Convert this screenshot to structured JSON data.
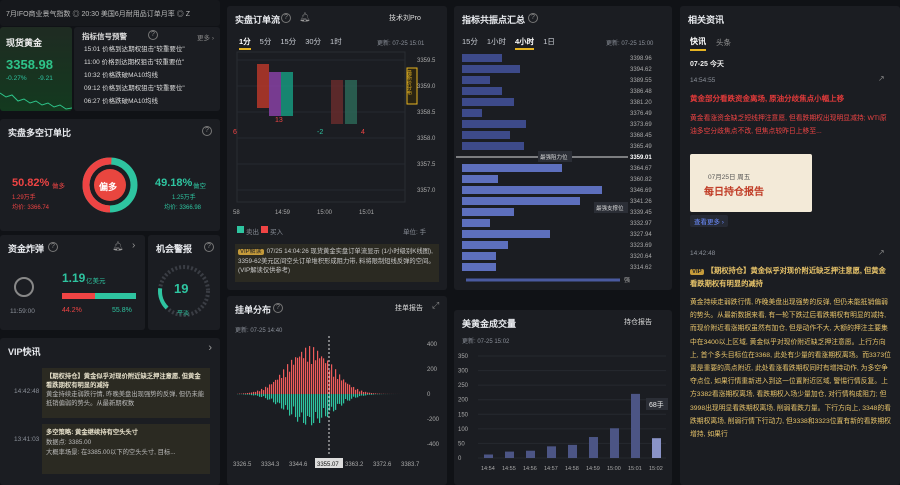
{
  "ticker": {
    "text": "7月IFO商业景气指数 ◎ 20:30 美国6月耐用品订单月率 ◎ Z"
  },
  "spot": {
    "title": "现货黄金",
    "price": "3358.98",
    "change": "-0.27%",
    "delta": "-9.21"
  },
  "signals": {
    "title": "指标信号预警",
    "more": "更多 ›",
    "items": [
      {
        "time": "15:01",
        "text": "价格到达期权狙击\"较重要位\""
      },
      {
        "time": "11:00",
        "text": "价格到达期权狙击\"较重要位\""
      },
      {
        "time": "10:32",
        "text": "价格跌破MA10均线"
      },
      {
        "time": "09:12",
        "text": "价格到达期权狙击\"较重要位\""
      },
      {
        "time": "06:27",
        "text": "价格跌破MA10均线"
      }
    ]
  },
  "longshort": {
    "title": "实盘多空订单比",
    "left_pct": "50.82%",
    "left_label": "做多",
    "left_sub": "1.29万手",
    "left_avg": "均价: 3366.74",
    "center": "偏多",
    "right_pct": "49.18%",
    "right_label": "做空",
    "right_sub": "1.25万手",
    "right_avg": "均价: 3366.98",
    "long_fraction": 0.5082
  },
  "bomb": {
    "title": "资金炸弹",
    "value": "1.19",
    "unit": "亿美元",
    "time": "11:59:00",
    "left_pct": "44.2%",
    "right_pct": "55.8%",
    "left_fraction": 0.442
  },
  "alarm": {
    "title": "机会警报",
    "value": "19",
    "label": "平淡",
    "level": 0.19
  },
  "vip": {
    "title": "VIP快讯",
    "items": [
      {
        "time": "14:42:48",
        "text": "【期权持仓】黄金似乎对现价附近缺乏押注意愿, 但黄金看跌期权有明显的减持",
        "body": "黄金持续走弱跌行情, 昨晚美盘出现强势的反弹, 但仍未能抵销偏弱的势头。从最新期权数"
      },
      {
        "time": "13:41:03",
        "text": "多空策略: 黄金继续持有空头头寸",
        "body": "数据点: 3385.00",
        "body2": "大概率场景: 在3385.00以下的空头头寸, 目标..."
      }
    ]
  },
  "orderflow": {
    "title": "实盘订单流",
    "tech": "技术刘Pro",
    "tabs": [
      "1分",
      "5分",
      "15分",
      "30分",
      "1时"
    ],
    "active_tab": 0,
    "updated": "更新: 07-25 15:01",
    "prices": [
      "3359.5",
      "3359.0",
      "3358.5",
      "3358.0",
      "3357.5",
      "3357.0"
    ],
    "times": [
      "58",
      "14:59",
      "15:00",
      "15:01"
    ],
    "side_note": "最新价分布",
    "cells_a": [
      "6",
      "13"
    ],
    "cells_b": [
      "-2"
    ],
    "cells_c": [
      "4"
    ],
    "legend_sell": "卖出",
    "legend_buy": "买入",
    "unit": "单位: 手",
    "vip_label": "VIP解读",
    "vip_text": "07/25 14:04:26 现货黄金实盘订单流显示 (1小时级别K线图), 3359-62美元区间空头订单堆积形成阻力带, 料将限制短线反弹的空间。(VIP解读仅供参考)"
  },
  "resonance": {
    "title": "指标共振点汇总",
    "tabs": [
      "15分",
      "1小时",
      "4小时",
      "1日"
    ],
    "active_tab": 2,
    "updated": "更新: 07-25 15:00",
    "prices": [
      "3398.96",
      "3394.62",
      "3389.55",
      "3386.48",
      "3381.20",
      "3376.49",
      "3373.69",
      "3368.45",
      "3365.49",
      "3359.01",
      "3364.67",
      "3360.82",
      "3346.69",
      "3341.26",
      "3339.45",
      "3332.97",
      "3327.94",
      "3323.69",
      "3320.64",
      "3314.62"
    ],
    "current": "3359.01",
    "resist_label": "最强阻力位",
    "support_label": "最强支撑位",
    "bottom_label": "强"
  },
  "options": {
    "title": "挂单分布",
    "report": "挂单报告",
    "updated": "更新: 07-25 14:40",
    "xticks": [
      "3326.5",
      "3334.3",
      "3344.6",
      "3355.07",
      "3363.2",
      "3372.6",
      "3383.7"
    ],
    "yticks": [
      "400",
      "200",
      "0",
      "-200",
      "-400"
    ]
  },
  "volume": {
    "title": "美黄金成交量",
    "report": "持仓报告",
    "updated": "更新: 07-25 15:02",
    "yticks": [
      "350",
      "300",
      "250",
      "200",
      "150",
      "100",
      "50",
      "0"
    ],
    "times": [
      "14:54",
      "14:55",
      "14:56",
      "14:57",
      "14:58",
      "14:59",
      "15:00",
      "15:01",
      "15:02"
    ],
    "values": [
      12,
      22,
      25,
      40,
      45,
      72,
      102,
      220,
      68
    ],
    "tooltip": "68手"
  },
  "news": {
    "title": "相关资讯",
    "tabs": [
      "快讯",
      "头条"
    ],
    "date": "07-25 今天",
    "n1_time": "14:54:55",
    "n1_title": "黄金部分看跌资金离场, 原油分歧焦点小幅上移",
    "n1_body": "黄金看涨资金缺乏短线押注意愿, 但看跌期权出现明显减持; WTI原油多空分歧焦点不改, 但焦点较昨日上移至...",
    "banner_date": "07月25日 周五",
    "banner_title": "每日持仓报告",
    "more": "查看更多 ›",
    "n2_time": "14:42:48",
    "n2_title": "【期权持仓】黄金似乎对现价附近缺乏押注意愿, 但黄金看跌期权有明显的减持",
    "n2_body": "黄金持续走弱跌行情, 昨晚美盘出现强势的反弹, 但仍未能抵销偏弱的势头。从最新数据来看, 有一轮下跌过后看跌期权有明显的减持, 而现价附近看涨期权虽然有加仓, 但是动作不大, 大额的押注主要集中在3400以上区域, 黄金似乎对现价附近缺乏押注意愿。上行方向上, 首个多头目标位在3368, 此处有少量的看涨期权离场。而3373位置是重要的高点附近, 此处看涨看跌期权同时有增持动作, 为多空争夺点位, 如果行情重新进入到这一位置附近区域, 警惕行情反复。上方3382看涨期权离场, 看跌期权入场少量加仓, 对行情构成阻力; 但3998出现明显看跌期权离场, 削弱看跌力量。下行方向上, 3348的看跌期权离场, 削弱行情下行动力, 但3338和3323位置有新的看跌期权增持, 如果行"
  }
}
